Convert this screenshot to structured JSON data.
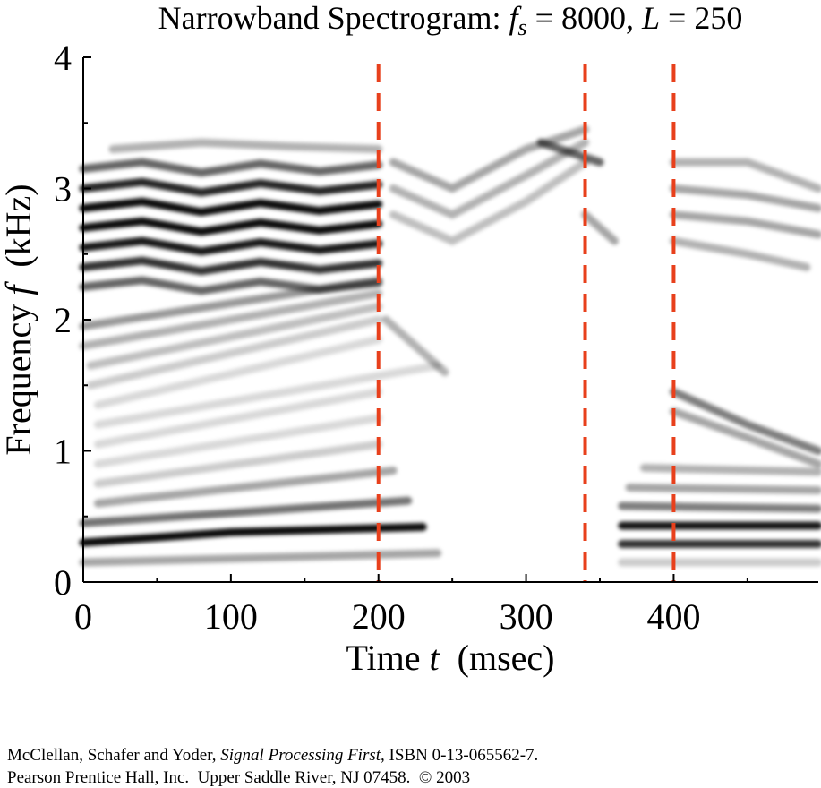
{
  "chart_data": {
    "type": "spectrogram",
    "title": [
      "Narrowband Spectrogram: ",
      "f",
      "s",
      " = 8000, ",
      "L",
      " = 250"
    ],
    "xlabel": [
      "Time ",
      "t",
      "  (msec)"
    ],
    "ylabel": [
      "Frequency ",
      "f",
      "  (kHz)"
    ],
    "xlim": [
      0,
      498
    ],
    "ylim": [
      0,
      4
    ],
    "xticks": [
      0,
      100,
      200,
      300,
      400
    ],
    "xminorticks": [
      50,
      150,
      250,
      350,
      450
    ],
    "yticks": [
      0,
      1,
      2,
      3,
      4
    ],
    "yminorticks": [
      0.5,
      1.5,
      2.5,
      3.5
    ],
    "markers": {
      "x": [
        200,
        340,
        400
      ],
      "color": "#e8401c"
    },
    "color": "#000000",
    "tracks": [
      {
        "t": [
          0,
          240
        ],
        "f": [
          0.15,
          0.22
        ],
        "level": 0.35
      },
      {
        "t": [
          0,
          100,
          230
        ],
        "f": [
          0.3,
          0.38,
          0.42
        ],
        "level": 0.95
      },
      {
        "t": [
          0,
          220
        ],
        "f": [
          0.45,
          0.62
        ],
        "level": 0.55
      },
      {
        "t": [
          10,
          210
        ],
        "f": [
          0.6,
          0.85
        ],
        "level": 0.35
      },
      {
        "t": [
          10,
          200
        ],
        "f": [
          0.75,
          1.05
        ],
        "level": 0.2
      },
      {
        "t": [
          10,
          200
        ],
        "f": [
          0.9,
          1.25
        ],
        "level": 0.15
      },
      {
        "t": [
          10,
          200
        ],
        "f": [
          1.05,
          1.45
        ],
        "level": 0.15
      },
      {
        "t": [
          10,
          240
        ],
        "f": [
          1.2,
          1.65
        ],
        "level": 0.15
      },
      {
        "t": [
          10,
          200
        ],
        "f": [
          1.35,
          1.85
        ],
        "level": 0.15
      },
      {
        "t": [
          5,
          200
        ],
        "f": [
          1.5,
          2.0
        ],
        "level": 0.2
      },
      {
        "t": [
          5,
          200
        ],
        "f": [
          1.65,
          2.1
        ],
        "level": 0.25
      },
      {
        "t": [
          0,
          200
        ],
        "f": [
          1.8,
          2.2
        ],
        "level": 0.3
      },
      {
        "t": [
          0,
          200
        ],
        "f": [
          1.95,
          2.3
        ],
        "level": 0.4
      },
      {
        "t": [
          0,
          40,
          80,
          120,
          160,
          200
        ],
        "f": [
          2.25,
          2.3,
          2.22,
          2.29,
          2.23,
          2.28
        ],
        "level": 0.6
      },
      {
        "t": [
          0,
          40,
          80,
          120,
          160,
          200
        ],
        "f": [
          2.4,
          2.45,
          2.37,
          2.44,
          2.38,
          2.43
        ],
        "level": 0.8
      },
      {
        "t": [
          0,
          40,
          80,
          120,
          160,
          200
        ],
        "f": [
          2.55,
          2.6,
          2.52,
          2.59,
          2.53,
          2.58
        ],
        "level": 0.9
      },
      {
        "t": [
          0,
          40,
          80,
          120,
          160,
          200
        ],
        "f": [
          2.7,
          2.75,
          2.67,
          2.74,
          2.68,
          2.73
        ],
        "level": 0.95
      },
      {
        "t": [
          0,
          40,
          80,
          120,
          160,
          200
        ],
        "f": [
          2.85,
          2.9,
          2.82,
          2.89,
          2.83,
          2.88
        ],
        "level": 0.95
      },
      {
        "t": [
          0,
          40,
          80,
          120,
          160,
          200
        ],
        "f": [
          3.0,
          3.05,
          2.97,
          3.04,
          2.98,
          3.03
        ],
        "level": 0.85
      },
      {
        "t": [
          0,
          40,
          80,
          120,
          160,
          200
        ],
        "f": [
          3.15,
          3.2,
          3.12,
          3.19,
          3.13,
          3.18
        ],
        "level": 0.6
      },
      {
        "t": [
          20,
          80,
          140,
          200
        ],
        "f": [
          3.3,
          3.35,
          3.32,
          3.3
        ],
        "level": 0.3
      },
      {
        "t": [
          210,
          250,
          300,
          340
        ],
        "f": [
          2.8,
          2.6,
          2.9,
          3.2
        ],
        "level": 0.25
      },
      {
        "t": [
          210,
          250,
          300,
          340
        ],
        "f": [
          3.0,
          2.8,
          3.1,
          3.35
        ],
        "level": 0.3
      },
      {
        "t": [
          210,
          250,
          300,
          340
        ],
        "f": [
          3.2,
          3.0,
          3.3,
          3.45
        ],
        "level": 0.35
      },
      {
        "t": [
          205,
          245
        ],
        "f": [
          2.0,
          1.6
        ],
        "level": 0.3
      },
      {
        "t": [
          310,
          350
        ],
        "f": [
          3.35,
          3.2
        ],
        "level": 0.6
      },
      {
        "t": [
          340,
          360
        ],
        "f": [
          2.8,
          2.6
        ],
        "level": 0.35
      },
      {
        "t": [
          365,
          498
        ],
        "f": [
          0.15,
          0.15
        ],
        "level": 0.2
      },
      {
        "t": [
          365,
          498
        ],
        "f": [
          0.29,
          0.29
        ],
        "level": 0.8
      },
      {
        "t": [
          365,
          498
        ],
        "f": [
          0.43,
          0.43
        ],
        "level": 0.9
      },
      {
        "t": [
          365,
          498
        ],
        "f": [
          0.58,
          0.56
        ],
        "level": 0.5
      },
      {
        "t": [
          370,
          498
        ],
        "f": [
          0.72,
          0.7
        ],
        "level": 0.35
      },
      {
        "t": [
          380,
          498
        ],
        "f": [
          0.87,
          0.84
        ],
        "level": 0.3
      },
      {
        "t": [
          400,
          450,
          498
        ],
        "f": [
          1.45,
          1.2,
          1.0
        ],
        "level": 0.5
      },
      {
        "t": [
          400,
          450,
          498
        ],
        "f": [
          1.3,
          1.1,
          0.9
        ],
        "level": 0.35
      },
      {
        "t": [
          400,
          450,
          498
        ],
        "f": [
          3.2,
          3.2,
          3.0
        ],
        "level": 0.3
      },
      {
        "t": [
          400,
          450,
          498
        ],
        "f": [
          3.0,
          2.95,
          2.85
        ],
        "level": 0.35
      },
      {
        "t": [
          400,
          450,
          498
        ],
        "f": [
          2.8,
          2.75,
          2.65
        ],
        "level": 0.35
      },
      {
        "t": [
          400,
          450,
          490
        ],
        "f": [
          2.6,
          2.5,
          2.4
        ],
        "level": 0.3
      }
    ]
  },
  "footer": {
    "lines": [
      [
        "McClellan, Schafer and Yoder, ",
        "Signal Processing First,",
        " ISBN 0-13-065562-7."
      ],
      [
        "Pearson Prentice Hall, Inc.  Upper Saddle River, NJ 07458.  © 2003"
      ]
    ]
  }
}
